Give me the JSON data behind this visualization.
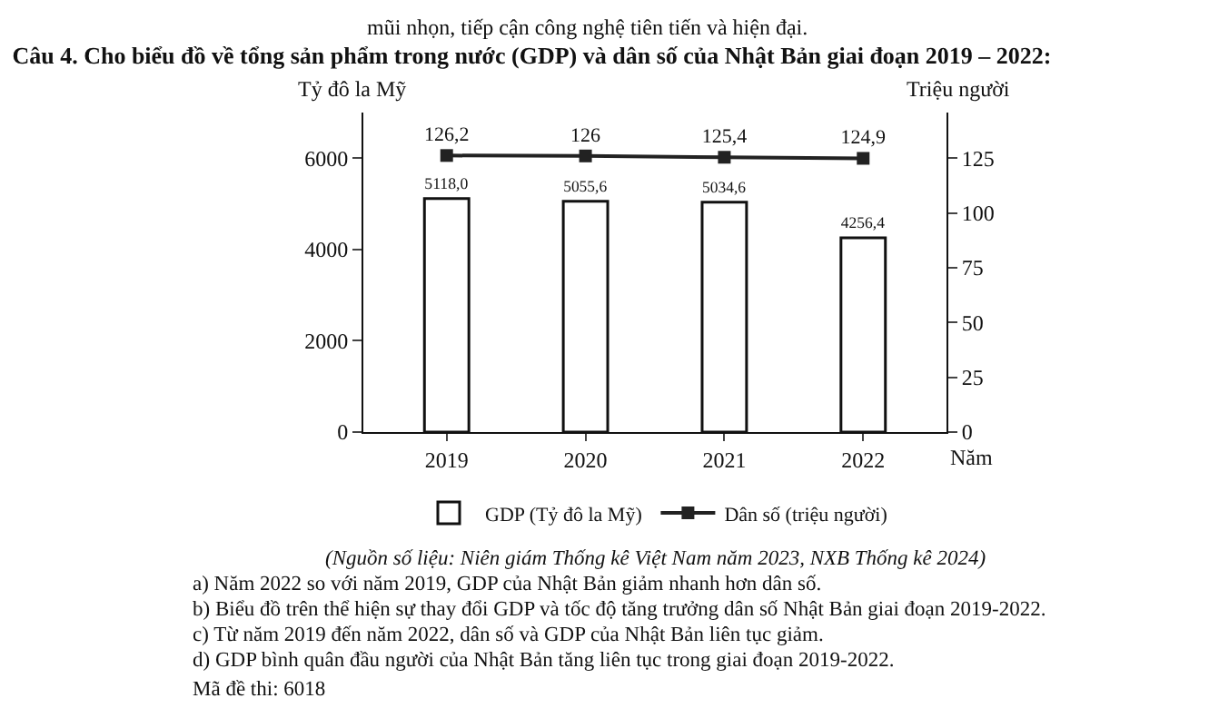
{
  "chart_data": {
    "type": "bar",
    "title": "Câu 4. Cho biểu đồ về tổng sản phẩm trong nước (GDP) và dân số của Nhật Bản giai đoạn 2019 – 2022:",
    "categories": [
      "2019",
      "2020",
      "2021",
      "2022"
    ],
    "series": [
      {
        "name": "GDP (Tỷ đô la Mỹ)",
        "color": "#ffffff",
        "values": [
          5118.0,
          5055.6,
          5034.6,
          4256.4
        ],
        "value_labels": [
          "5118,0",
          "5055,6",
          "5034,6",
          "4256,4"
        ]
      },
      {
        "name": "Dân số (triệu người)",
        "type": "line",
        "axis": "y2",
        "color": "#222222",
        "values": [
          126.2,
          126,
          125.4,
          124.9
        ],
        "value_labels": [
          "126,2",
          "126",
          "125,4",
          "124,9"
        ],
        "marker": "square"
      }
    ],
    "xlabel": "Năm",
    "ylabel": "Tỷ đô la Mỹ",
    "y2label": "Triệu người",
    "ylim": [
      0,
      7000
    ],
    "yticks": [
      0,
      2000,
      4000,
      6000
    ],
    "y2lim": [
      0,
      145.8
    ],
    "y2ticks": [
      0,
      25,
      50,
      75,
      100,
      125
    ],
    "grid": false,
    "legend": "bottom",
    "annotations": [
      "mũi nhọn, tiếp cận công nghệ tiên tiến và hiện đại.",
      "(Nguồn số liệu: Niên giám Thống kê Việt Nam năm 2023, NXB Thống kê 2024)",
      "a) Năm 2022 so với năm 2019, GDP của Nhật Bản giảm nhanh hơn dân số.",
      "b) Biểu đồ trên thể hiện sự thay đổi GDP và tốc độ tăng trưởng dân số Nhật Bản giai đoạn 2019-2022.",
      "c) Từ năm 2019 đến năm 2022, dân số và GDP của Nhật Bản liên tục giảm.",
      "d) GDP bình quân đầu người của Nhật Bản tăng liên tục trong giai đoạn 2019-2022.",
      "Mã đề thi: 6018"
    ]
  }
}
